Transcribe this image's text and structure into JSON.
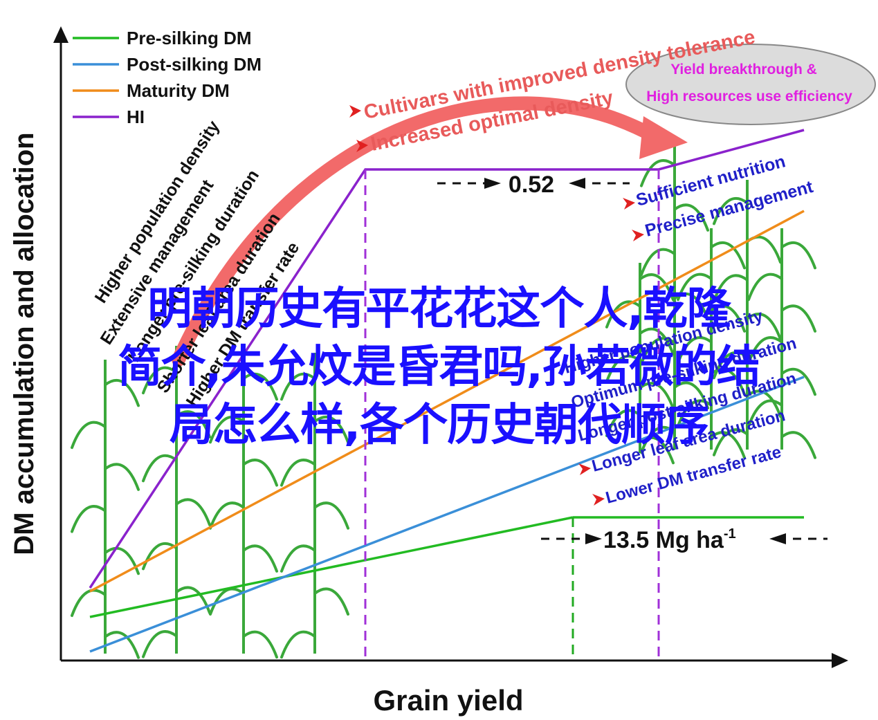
{
  "colors": {
    "pre_silking": "#22bb22",
    "post_silking": "#3a8fd8",
    "maturity": "#f08c1a",
    "hi": "#8a22cc",
    "arrow": "#f26a6a",
    "blue_text": "#1f1fc8",
    "red_text": "#e85a5a",
    "magenta_text": "#e020e0",
    "overlay_text": "#1a10ff",
    "plant": "#3aa83a"
  },
  "chart_data": {
    "type": "line",
    "xlabel": "Grain yield",
    "ylabel": "DM accumulation and allocation",
    "legend_position": "top-left",
    "series": [
      {
        "name": "Pre-silking DM"
      },
      {
        "name": "Post-silking DM"
      },
      {
        "name": "Maturity DM"
      },
      {
        "name": "HI"
      }
    ],
    "annotations": {
      "hi_value": "0.52",
      "yield_value": "13.5 Mg ha",
      "yield_unit_sup": "-1"
    }
  },
  "left_labels": [
    "Higher population density",
    "Extensive management",
    "Longer pre-silking duration",
    "Shorter leaf area duration",
    "Higher DM transfer rate"
  ],
  "top_labels": [
    "Cultivars with improved density tolerance",
    "Increased optimal density"
  ],
  "ellipse_text": [
    "Yield breakthrough &",
    "High resources use efficiency"
  ],
  "right_top_labels": [
    "Sufficient nutrition",
    "Precise management"
  ],
  "right_bottom_labels": [
    "Higher population density",
    "Optimum pre-silking duration",
    "Longer post-silking duration",
    "Longer leaf area duration",
    "Lower DM transfer rate"
  ],
  "overlay_lines": [
    "明朝历史有平花花这个人,乾隆",
    "简介,朱允炆是昏君吗,孙若微的结",
    "局怎么样,各个历史朝代顺序"
  ]
}
